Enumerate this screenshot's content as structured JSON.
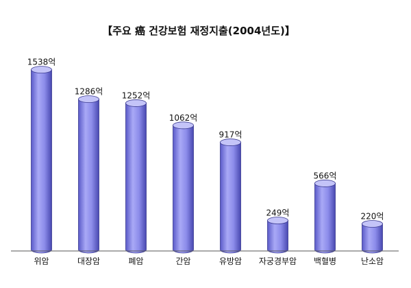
{
  "chart_data": {
    "type": "bar",
    "style": "3d-cylinder",
    "title": "【주요 癌 건강보험 재정지출(2004년도)】",
    "categories": [
      "위암",
      "대장암",
      "폐암",
      "간암",
      "유방암",
      "자궁경부암",
      "백혈병",
      "난소암"
    ],
    "values": [
      1538,
      1286,
      1252,
      1062,
      917,
      249,
      566,
      220
    ],
    "value_labels": [
      "1538억",
      "1286억",
      "1252억",
      "1062억",
      "917억",
      "249억",
      "566억",
      "220억"
    ],
    "unit": "억",
    "ylim": [
      0,
      1700
    ],
    "grid": false,
    "legend": "none",
    "bar_color": "#8f8fef",
    "bar_dark": "#4d4db8",
    "bar_top": "#c4c4f8",
    "axis_color": "#555555"
  }
}
